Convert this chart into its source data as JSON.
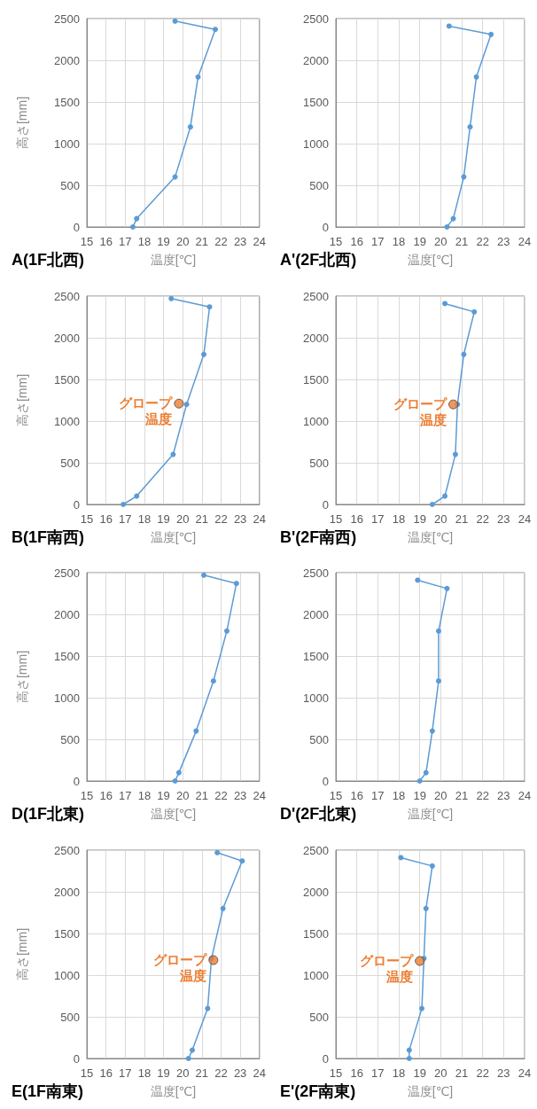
{
  "chart_data": [
    {
      "type": "line",
      "title": "A(1F北西)",
      "xlabel": "温度[℃]",
      "ylabel": "高さ[mm]",
      "xlim": [
        15,
        24
      ],
      "xticks": [
        15,
        16,
        17,
        18,
        19,
        20,
        21,
        22,
        23,
        24
      ],
      "ylim": [
        0,
        2500
      ],
      "yticks": [
        0,
        500,
        1000,
        1500,
        2000,
        2500
      ],
      "grid": true,
      "marker": "circle",
      "line_style": "solid",
      "series": [
        {
          "color": "#5b9bd5",
          "x": [
            17.4,
            17.6,
            19.6,
            20.4,
            20.8,
            21.7,
            19.6
          ],
          "values": [
            0,
            100,
            600,
            1200,
            1800,
            2370,
            2470
          ]
        }
      ]
    },
    {
      "type": "line",
      "title": "A'(2F北西)",
      "xlabel": "温度[℃]",
      "xlim": [
        15,
        24
      ],
      "xticks": [
        15,
        16,
        17,
        18,
        19,
        20,
        21,
        22,
        23,
        24
      ],
      "ylim": [
        0,
        2500
      ],
      "yticks": [
        0,
        500,
        1000,
        1500,
        2000,
        2500
      ],
      "grid": true,
      "marker": "circle",
      "line_style": "solid",
      "series": [
        {
          "color": "#5b9bd5",
          "x": [
            20.3,
            20.6,
            21.1,
            21.4,
            21.7,
            22.4,
            20.4
          ],
          "values": [
            0,
            100,
            600,
            1200,
            1800,
            2310,
            2410
          ]
        }
      ]
    },
    {
      "type": "line",
      "title": "B(1F南西)",
      "xlabel": "温度[℃]",
      "ylabel": "高さ[mm]",
      "xlim": [
        15,
        24
      ],
      "xticks": [
        15,
        16,
        17,
        18,
        19,
        20,
        21,
        22,
        23,
        24
      ],
      "ylim": [
        0,
        2500
      ],
      "yticks": [
        0,
        500,
        1000,
        1500,
        2000,
        2500
      ],
      "grid": true,
      "marker": "circle",
      "line_style": "solid",
      "annotations": [
        {
          "text": "グロープ温度",
          "x": 19.8,
          "y": 1210
        }
      ],
      "series": [
        {
          "color": "#5b9bd5",
          "x": [
            16.9,
            17.6,
            19.5,
            20.2,
            21.1,
            21.4,
            19.4
          ],
          "values": [
            0,
            100,
            600,
            1200,
            1800,
            2370,
            2470
          ]
        },
        {
          "type": "scatter",
          "color": "#ed7d31",
          "x": [
            19.8
          ],
          "values": [
            1210
          ]
        }
      ]
    },
    {
      "type": "line",
      "title": "B'(2F南西)",
      "xlabel": "温度[℃]",
      "xlim": [
        15,
        24
      ],
      "xticks": [
        15,
        16,
        17,
        18,
        19,
        20,
        21,
        22,
        23,
        24
      ],
      "ylim": [
        0,
        2500
      ],
      "yticks": [
        0,
        500,
        1000,
        1500,
        2000,
        2500
      ],
      "grid": true,
      "marker": "circle",
      "line_style": "solid",
      "annotations": [
        {
          "text": "グロープ温度",
          "x": 20.6,
          "y": 1200
        }
      ],
      "series": [
        {
          "color": "#5b9bd5",
          "x": [
            19.6,
            20.2,
            20.7,
            20.8,
            21.1,
            21.6,
            20.2
          ],
          "values": [
            0,
            100,
            600,
            1200,
            1800,
            2310,
            2410
          ]
        },
        {
          "type": "scatter",
          "color": "#ed7d31",
          "x": [
            20.6
          ],
          "values": [
            1200
          ]
        }
      ]
    },
    {
      "type": "line",
      "title": "D(1F北東)",
      "xlabel": "温度[℃]",
      "ylabel": "高さ[mm]",
      "xlim": [
        15,
        24
      ],
      "xticks": [
        15,
        16,
        17,
        18,
        19,
        20,
        21,
        22,
        23,
        24
      ],
      "ylim": [
        0,
        2500
      ],
      "yticks": [
        0,
        500,
        1000,
        1500,
        2000,
        2500
      ],
      "grid": true,
      "marker": "circle",
      "line_style": "solid",
      "series": [
        {
          "color": "#5b9bd5",
          "x": [
            19.6,
            19.8,
            20.7,
            21.6,
            22.3,
            22.8,
            21.1
          ],
          "values": [
            0,
            100,
            600,
            1200,
            1800,
            2370,
            2470
          ]
        }
      ]
    },
    {
      "type": "line",
      "title": "D'(2F北東)",
      "xlabel": "温度[℃]",
      "xlim": [
        15,
        24
      ],
      "xticks": [
        15,
        16,
        17,
        18,
        19,
        20,
        21,
        22,
        23,
        24
      ],
      "ylim": [
        0,
        2500
      ],
      "yticks": [
        0,
        500,
        1000,
        1500,
        2000,
        2500
      ],
      "grid": true,
      "marker": "circle",
      "line_style": "solid",
      "series": [
        {
          "color": "#5b9bd5",
          "x": [
            19.0,
            19.3,
            19.6,
            19.9,
            19.9,
            20.3,
            18.9
          ],
          "values": [
            0,
            100,
            600,
            1200,
            1800,
            2310,
            2410
          ]
        }
      ]
    },
    {
      "type": "line",
      "title": "E(1F南東)",
      "xlabel": "温度[℃]",
      "ylabel": "高さ[mm]",
      "xlim": [
        15,
        24
      ],
      "xticks": [
        15,
        16,
        17,
        18,
        19,
        20,
        21,
        22,
        23,
        24
      ],
      "ylim": [
        0,
        2500
      ],
      "yticks": [
        0,
        500,
        1000,
        1500,
        2000,
        2500
      ],
      "grid": true,
      "marker": "circle",
      "line_style": "solid",
      "annotations": [
        {
          "text": "グロープ温度",
          "x": 21.6,
          "y": 1180
        }
      ],
      "series": [
        {
          "color": "#5b9bd5",
          "x": [
            20.3,
            20.5,
            21.3,
            21.5,
            22.1,
            23.1,
            21.8
          ],
          "values": [
            0,
            100,
            600,
            1200,
            1800,
            2370,
            2470
          ]
        },
        {
          "type": "scatter",
          "color": "#ed7d31",
          "x": [
            21.6
          ],
          "values": [
            1180
          ]
        }
      ]
    },
    {
      "type": "line",
      "title": "E'(2F南東)",
      "xlabel": "温度[℃]",
      "xlim": [
        15,
        24
      ],
      "xticks": [
        15,
        16,
        17,
        18,
        19,
        20,
        21,
        22,
        23,
        24
      ],
      "ylim": [
        0,
        2500
      ],
      "yticks": [
        0,
        500,
        1000,
        1500,
        2000,
        2500
      ],
      "grid": true,
      "marker": "circle",
      "line_style": "solid",
      "annotations": [
        {
          "text": "グロープ温度",
          "x": 19.0,
          "y": 1170
        }
      ],
      "series": [
        {
          "color": "#5b9bd5",
          "x": [
            18.5,
            18.5,
            19.1,
            19.2,
            19.3,
            19.6,
            18.1
          ],
          "values": [
            0,
            100,
            600,
            1200,
            1800,
            2310,
            2410
          ]
        },
        {
          "type": "scatter",
          "color": "#ed7d31",
          "x": [
            19.0
          ],
          "values": [
            1170
          ]
        }
      ]
    }
  ]
}
